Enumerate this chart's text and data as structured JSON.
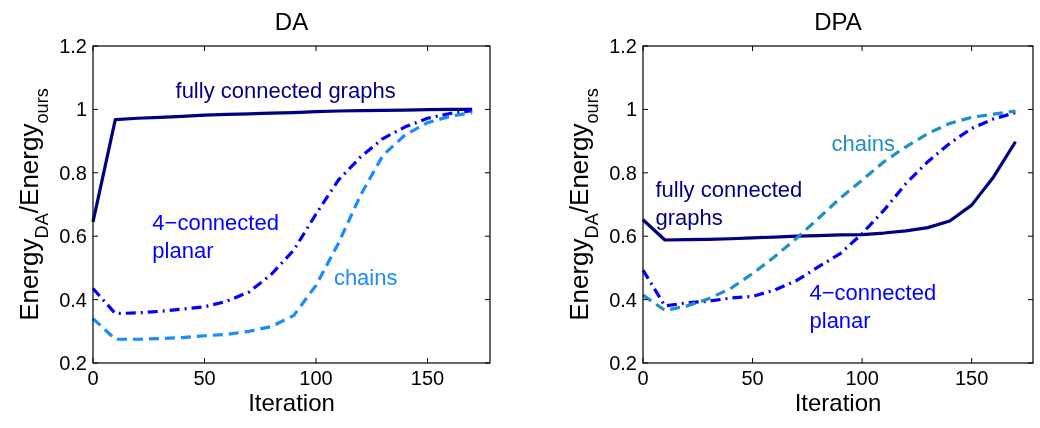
{
  "chart_data": [
    {
      "type": "line",
      "title": "DA",
      "xlabel": "Iteration",
      "ylabel": "Energy$_{DA}$/Energy$_{ours}$",
      "xlim": [
        0,
        178
      ],
      "ylim": [
        0.2,
        1.2
      ],
      "xticks": [
        0,
        50,
        100,
        150
      ],
      "yticks": [
        0.2,
        0.4,
        0.6,
        0.8,
        1,
        1.2
      ],
      "legend": false,
      "grid": false,
      "x": [
        0,
        10,
        20,
        30,
        40,
        50,
        60,
        70,
        80,
        90,
        100,
        110,
        120,
        130,
        140,
        150,
        160,
        170
      ],
      "series": [
        {
          "name": "fully connected graphs",
          "color": "#000080",
          "line_style": "solid",
          "values": [
            0.645,
            0.968,
            0.972,
            0.975,
            0.978,
            0.982,
            0.984,
            0.986,
            0.988,
            0.99,
            0.993,
            0.995,
            0.996,
            0.997,
            0.998,
            0.999,
            1.0,
            1.0
          ]
        },
        {
          "name": "4−connected planar",
          "color": "#0000ff",
          "line_style": "dashdot",
          "values": [
            0.435,
            0.356,
            0.358,
            0.363,
            0.37,
            0.377,
            0.395,
            0.424,
            0.48,
            0.556,
            0.67,
            0.777,
            0.85,
            0.908,
            0.945,
            0.972,
            0.987,
            0.996
          ]
        },
        {
          "name": "chains",
          "color": "#1a8cff",
          "line_style": "dashed",
          "values": [
            0.34,
            0.275,
            0.275,
            0.277,
            0.28,
            0.286,
            0.29,
            0.3,
            0.315,
            0.35,
            0.445,
            0.577,
            0.73,
            0.855,
            0.92,
            0.958,
            0.978,
            0.99
          ]
        }
      ]
    },
    {
      "type": "line",
      "title": "DPA",
      "xlabel": "Iteration",
      "ylabel": "Energy$_{DA}$/Energy$_{ours}$",
      "xlim": [
        0,
        178
      ],
      "ylim": [
        0.2,
        1.2
      ],
      "xticks": [
        0,
        50,
        100,
        150
      ],
      "yticks": [
        0.2,
        0.4,
        0.6,
        0.8,
        1,
        1.2
      ],
      "legend": false,
      "grid": false,
      "x": [
        0,
        10,
        20,
        30,
        40,
        50,
        60,
        70,
        80,
        90,
        100,
        110,
        120,
        130,
        140,
        150,
        160,
        170
      ],
      "series": [
        {
          "name": "fully connected graphs",
          "color": "#000080",
          "line_style": "solid",
          "values": [
            0.652,
            0.588,
            0.589,
            0.59,
            0.592,
            0.595,
            0.597,
            0.6,
            0.602,
            0.604,
            0.605,
            0.61,
            0.617,
            0.627,
            0.648,
            0.698,
            0.787,
            0.898
          ]
        },
        {
          "name": "4−connected planar",
          "color": "#0000ff",
          "line_style": "dashdot",
          "values": [
            0.493,
            0.38,
            0.39,
            0.395,
            0.405,
            0.41,
            0.43,
            0.46,
            0.503,
            0.545,
            0.608,
            0.682,
            0.766,
            0.835,
            0.893,
            0.94,
            0.97,
            0.99
          ]
        },
        {
          "name": "chains",
          "color": "#1f8fc4",
          "line_style": "dashed",
          "values": [
            0.414,
            0.366,
            0.38,
            0.403,
            0.435,
            0.482,
            0.535,
            0.593,
            0.656,
            0.72,
            0.777,
            0.835,
            0.882,
            0.924,
            0.956,
            0.975,
            0.985,
            0.995
          ]
        }
      ]
    }
  ]
}
